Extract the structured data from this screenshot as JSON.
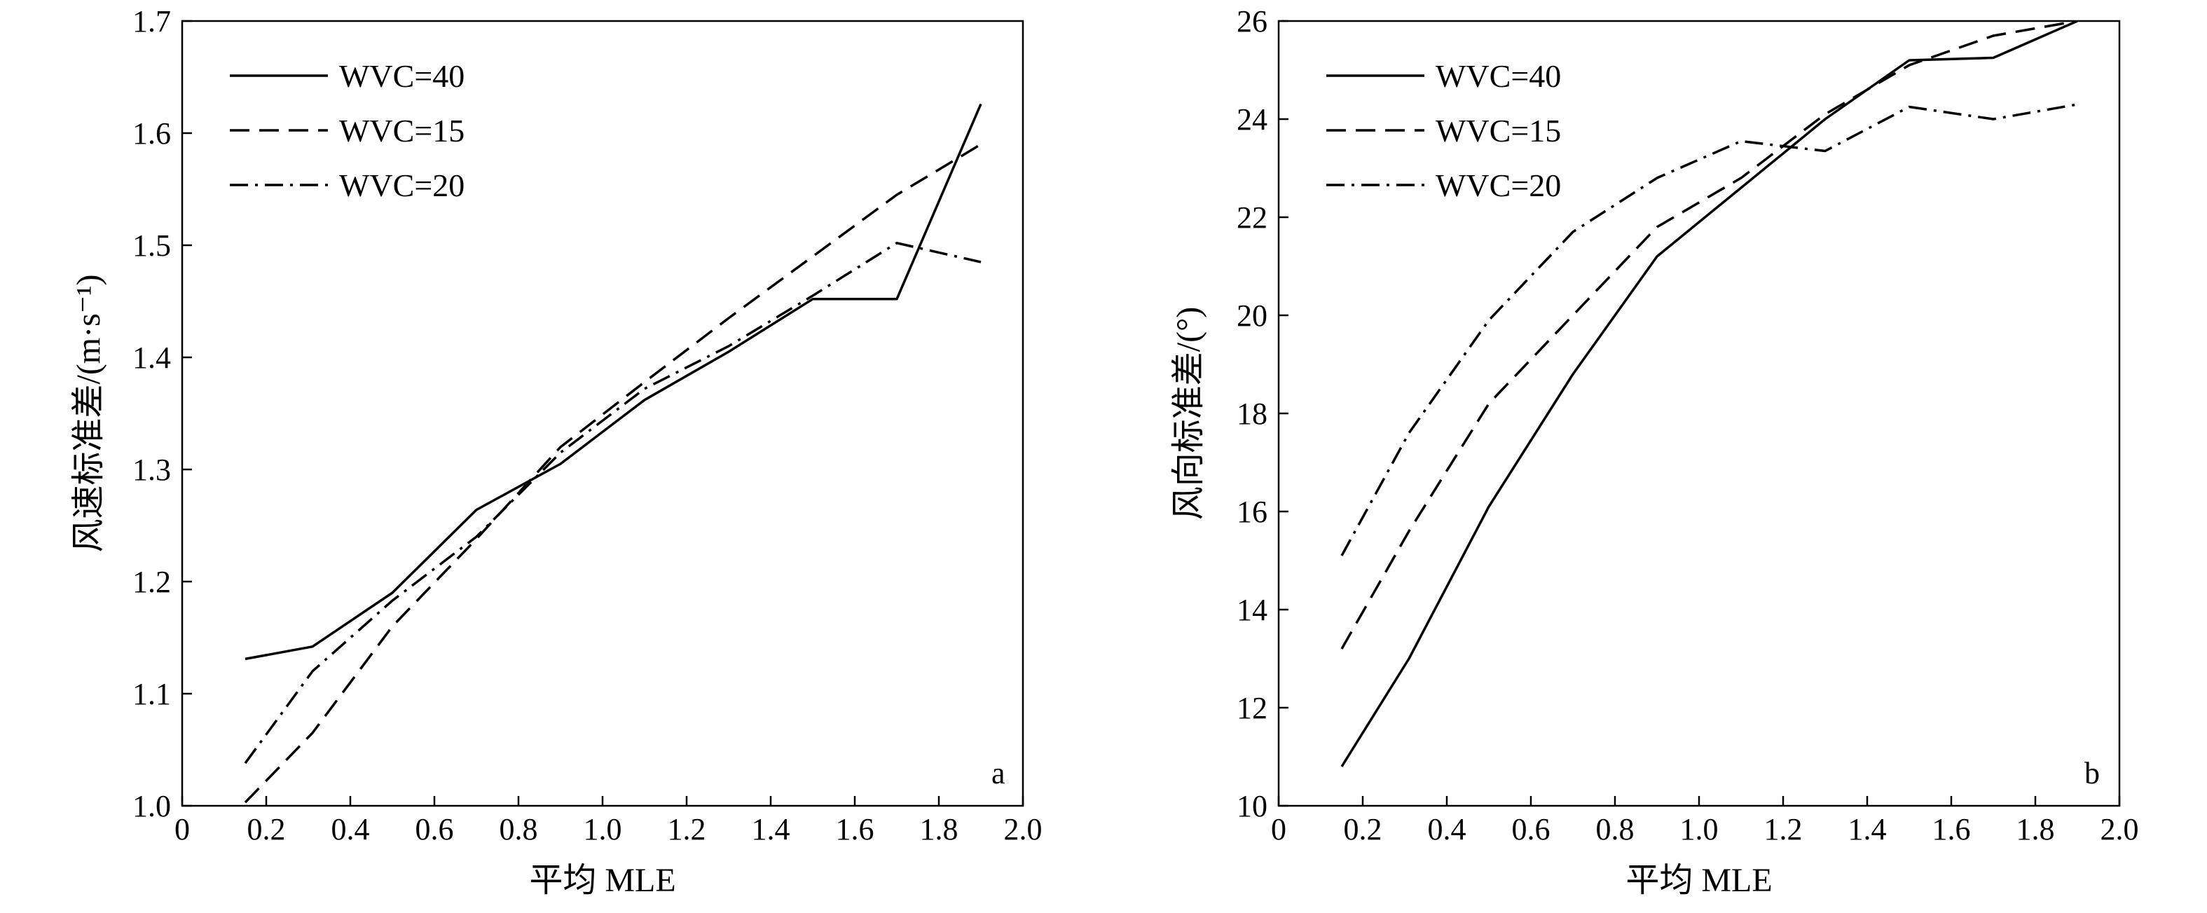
{
  "chart_data": [
    {
      "type": "line",
      "panel_label": "a",
      "xlabel": "平均 MLE",
      "ylabel": "风速标准差/(m·s⁻¹)",
      "xlim": [
        0,
        2.0
      ],
      "ylim": [
        1.0,
        1.7
      ],
      "xticks": [
        "0",
        "0.2",
        "0.4",
        "0.6",
        "0.8",
        "1.0",
        "1.2",
        "1.4",
        "1.6",
        "1.8",
        "2.0"
      ],
      "yticks": [
        "1.0",
        "1.1",
        "1.2",
        "1.3",
        "1.4",
        "1.5",
        "1.6",
        "1.7"
      ],
      "legend_position": "top-left",
      "grid": false,
      "series": [
        {
          "name": "WVC=40",
          "style": "solid",
          "x": [
            0.15,
            0.31,
            0.5,
            0.7,
            0.9,
            1.1,
            1.3,
            1.5,
            1.7,
            1.9
          ],
          "y": [
            1.131,
            1.142,
            1.19,
            1.264,
            1.305,
            1.362,
            1.405,
            1.452,
            1.452,
            1.626
          ]
        },
        {
          "name": "WVC=15",
          "style": "dashed",
          "x": [
            0.15,
            0.31,
            0.5,
            0.7,
            0.9,
            1.1,
            1.3,
            1.5,
            1.7,
            1.9
          ],
          "y": [
            1.003,
            1.065,
            1.16,
            1.238,
            1.32,
            1.378,
            1.435,
            1.49,
            1.545,
            1.59
          ]
        },
        {
          "name": "WVC=20",
          "style": "dashdot",
          "x": [
            0.15,
            0.31,
            0.5,
            0.7,
            0.9,
            1.1,
            1.3,
            1.5,
            1.7,
            1.9
          ],
          "y": [
            1.038,
            1.12,
            1.183,
            1.24,
            1.315,
            1.372,
            1.41,
            1.455,
            1.502,
            1.485
          ]
        }
      ]
    },
    {
      "type": "line",
      "panel_label": "b",
      "xlabel": "平均 MLE",
      "ylabel": "风向标准差/(°)",
      "xlim": [
        0,
        2.0
      ],
      "ylim": [
        10,
        26
      ],
      "xticks": [
        "0",
        "0.2",
        "0.4",
        "0.6",
        "0.8",
        "1.0",
        "1.2",
        "1.4",
        "1.6",
        "1.8",
        "2.0"
      ],
      "yticks": [
        "10",
        "12",
        "14",
        "16",
        "18",
        "20",
        "22",
        "24",
        "26"
      ],
      "legend_position": "top-left",
      "grid": false,
      "series": [
        {
          "name": "WVC=40",
          "style": "solid",
          "x": [
            0.15,
            0.31,
            0.5,
            0.7,
            0.9,
            1.1,
            1.3,
            1.5,
            1.7,
            1.9
          ],
          "y": [
            10.8,
            13.0,
            16.1,
            18.8,
            21.2,
            22.6,
            24.0,
            25.2,
            25.25,
            26.0
          ]
        },
        {
          "name": "WVC=15",
          "style": "dashed",
          "x": [
            0.15,
            0.31,
            0.5,
            0.7,
            0.9,
            1.1,
            1.3,
            1.5,
            1.7,
            1.9
          ],
          "y": [
            13.2,
            15.6,
            18.2,
            20.0,
            21.8,
            22.8,
            24.1,
            25.1,
            25.7,
            26.0
          ]
        },
        {
          "name": "WVC=20",
          "style": "dashdot",
          "x": [
            0.15,
            0.31,
            0.5,
            0.7,
            0.9,
            1.1,
            1.3,
            1.5,
            1.7,
            1.9
          ],
          "y": [
            15.1,
            17.6,
            19.9,
            21.7,
            22.8,
            23.55,
            23.35,
            24.25,
            24.0,
            24.3
          ]
        }
      ]
    }
  ]
}
